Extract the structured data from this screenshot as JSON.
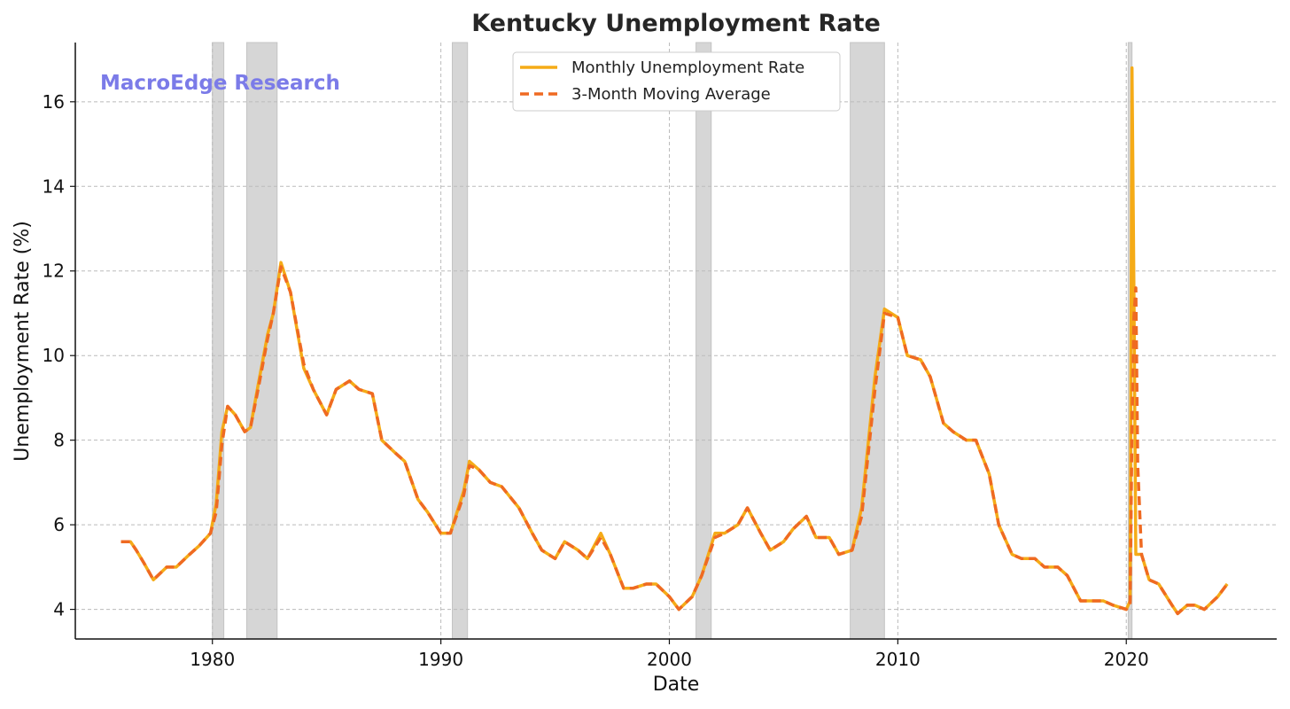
{
  "chart_data": {
    "type": "line",
    "title": "Kentucky Unemployment Rate",
    "xlabel": "Date",
    "ylabel": "Unemployment Rate (%)",
    "watermark": "MacroEdge Research",
    "xlim": [
      "1974-01",
      "2026-08"
    ],
    "ylim": [
      3.3,
      17.4
    ],
    "x_ticks": [
      "1980",
      "1990",
      "2000",
      "2010",
      "2020"
    ],
    "y_ticks": [
      4,
      6,
      8,
      10,
      12,
      14,
      16
    ],
    "grid": true,
    "legend_position": "top-center",
    "colors": {
      "monthly": "#f5ab17",
      "moving_average": "#ef6a22",
      "recession": "#d6d6d6",
      "watermark": "#7b7be8",
      "grid": "#bbbbbb"
    },
    "recessions": [
      {
        "start": "1980-01",
        "end": "1980-07"
      },
      {
        "start": "1981-07",
        "end": "1982-11"
      },
      {
        "start": "1990-07",
        "end": "1991-03"
      },
      {
        "start": "2001-03",
        "end": "2001-11"
      },
      {
        "start": "2007-12",
        "end": "2009-06"
      },
      {
        "start": "2020-02",
        "end": "2020-04"
      }
    ],
    "series": [
      {
        "name": "Monthly Unemployment Rate",
        "style": "solid",
        "points": [
          [
            "1976-01",
            5.6
          ],
          [
            "1976-06",
            5.6
          ],
          [
            "1976-09",
            5.4
          ],
          [
            "1977-01",
            5.1
          ],
          [
            "1977-06",
            4.7
          ],
          [
            "1978-01",
            5.0
          ],
          [
            "1978-06",
            5.0
          ],
          [
            "1979-01",
            5.3
          ],
          [
            "1979-06",
            5.5
          ],
          [
            "1979-12",
            5.8
          ],
          [
            "1980-03",
            6.5
          ],
          [
            "1980-06",
            8.2
          ],
          [
            "1980-09",
            8.8
          ],
          [
            "1981-01",
            8.6
          ],
          [
            "1981-06",
            8.2
          ],
          [
            "1981-09",
            8.3
          ],
          [
            "1982-01",
            9.3
          ],
          [
            "1982-06",
            10.5
          ],
          [
            "1982-09",
            11.0
          ],
          [
            "1983-01",
            12.2
          ],
          [
            "1983-06",
            11.5
          ],
          [
            "1984-01",
            9.7
          ],
          [
            "1984-06",
            9.2
          ],
          [
            "1985-01",
            8.6
          ],
          [
            "1985-06",
            9.2
          ],
          [
            "1986-01",
            9.4
          ],
          [
            "1986-06",
            9.2
          ],
          [
            "1987-01",
            9.1
          ],
          [
            "1987-06",
            8.0
          ],
          [
            "1988-01",
            7.7
          ],
          [
            "1988-06",
            7.5
          ],
          [
            "1989-01",
            6.6
          ],
          [
            "1989-06",
            6.3
          ],
          [
            "1990-01",
            5.8
          ],
          [
            "1990-06",
            5.8
          ],
          [
            "1991-01",
            6.8
          ],
          [
            "1991-04",
            7.5
          ],
          [
            "1991-09",
            7.3
          ],
          [
            "1992-03",
            7.0
          ],
          [
            "1992-09",
            6.9
          ],
          [
            "1993-06",
            6.4
          ],
          [
            "1994-01",
            5.8
          ],
          [
            "1994-06",
            5.4
          ],
          [
            "1995-01",
            5.2
          ],
          [
            "1995-06",
            5.6
          ],
          [
            "1996-01",
            5.4
          ],
          [
            "1996-06",
            5.2
          ],
          [
            "1997-01",
            5.8
          ],
          [
            "1997-06",
            5.3
          ],
          [
            "1998-01",
            4.5
          ],
          [
            "1998-06",
            4.5
          ],
          [
            "1999-01",
            4.6
          ],
          [
            "1999-06",
            4.6
          ],
          [
            "2000-01",
            4.3
          ],
          [
            "2000-06",
            4.0
          ],
          [
            "2001-01",
            4.3
          ],
          [
            "2001-06",
            4.8
          ],
          [
            "2002-01",
            5.8
          ],
          [
            "2002-06",
            5.8
          ],
          [
            "2003-01",
            6.0
          ],
          [
            "2003-06",
            6.4
          ],
          [
            "2004-01",
            5.8
          ],
          [
            "2004-06",
            5.4
          ],
          [
            "2005-01",
            5.6
          ],
          [
            "2005-06",
            5.9
          ],
          [
            "2006-01",
            6.2
          ],
          [
            "2006-06",
            5.7
          ],
          [
            "2007-01",
            5.7
          ],
          [
            "2007-06",
            5.3
          ],
          [
            "2008-01",
            5.4
          ],
          [
            "2008-06",
            6.4
          ],
          [
            "2009-01",
            9.5
          ],
          [
            "2009-06",
            11.1
          ],
          [
            "2010-01",
            10.9
          ],
          [
            "2010-06",
            10.0
          ],
          [
            "2011-01",
            9.9
          ],
          [
            "2011-06",
            9.5
          ],
          [
            "2012-01",
            8.4
          ],
          [
            "2012-06",
            8.2
          ],
          [
            "2013-01",
            8.0
          ],
          [
            "2013-06",
            8.0
          ],
          [
            "2014-01",
            7.2
          ],
          [
            "2014-06",
            6.0
          ],
          [
            "2015-01",
            5.3
          ],
          [
            "2015-06",
            5.2
          ],
          [
            "2016-01",
            5.2
          ],
          [
            "2016-06",
            5.0
          ],
          [
            "2017-01",
            5.0
          ],
          [
            "2017-06",
            4.8
          ],
          [
            "2018-01",
            4.2
          ],
          [
            "2018-06",
            4.2
          ],
          [
            "2019-01",
            4.2
          ],
          [
            "2019-06",
            4.1
          ],
          [
            "2020-01",
            4.0
          ],
          [
            "2020-03",
            4.2
          ],
          [
            "2020-04",
            16.8
          ],
          [
            "2020-05",
            11.6
          ],
          [
            "2020-06",
            5.3
          ],
          [
            "2020-09",
            5.3
          ],
          [
            "2021-01",
            4.7
          ],
          [
            "2021-06",
            4.6
          ],
          [
            "2022-01",
            4.1
          ],
          [
            "2022-04",
            3.9
          ],
          [
            "2022-09",
            4.1
          ],
          [
            "2023-01",
            4.1
          ],
          [
            "2023-06",
            4.0
          ],
          [
            "2024-01",
            4.3
          ],
          [
            "2024-06",
            4.6
          ]
        ]
      },
      {
        "name": "3-Month Moving Average",
        "style": "dashed",
        "points": [
          [
            "1976-01",
            5.6
          ],
          [
            "1976-06",
            5.6
          ],
          [
            "1976-09",
            5.4
          ],
          [
            "1977-01",
            5.1
          ],
          [
            "1977-06",
            4.7
          ],
          [
            "1978-01",
            5.0
          ],
          [
            "1978-06",
            5.0
          ],
          [
            "1979-01",
            5.3
          ],
          [
            "1979-06",
            5.5
          ],
          [
            "1979-12",
            5.8
          ],
          [
            "1980-03",
            6.3
          ],
          [
            "1980-06",
            7.9
          ],
          [
            "1980-09",
            8.8
          ],
          [
            "1981-01",
            8.6
          ],
          [
            "1981-06",
            8.2
          ],
          [
            "1981-09",
            8.3
          ],
          [
            "1982-01",
            9.2
          ],
          [
            "1982-06",
            10.4
          ],
          [
            "1982-09",
            11.0
          ],
          [
            "1983-01",
            12.1
          ],
          [
            "1983-06",
            11.5
          ],
          [
            "1984-01",
            9.8
          ],
          [
            "1984-06",
            9.2
          ],
          [
            "1985-01",
            8.6
          ],
          [
            "1985-06",
            9.2
          ],
          [
            "1986-01",
            9.4
          ],
          [
            "1986-06",
            9.2
          ],
          [
            "1987-01",
            9.1
          ],
          [
            "1987-06",
            8.0
          ],
          [
            "1988-01",
            7.7
          ],
          [
            "1988-06",
            7.5
          ],
          [
            "1989-01",
            6.6
          ],
          [
            "1989-06",
            6.3
          ],
          [
            "1990-01",
            5.8
          ],
          [
            "1990-06",
            5.8
          ],
          [
            "1991-01",
            6.7
          ],
          [
            "1991-04",
            7.4
          ],
          [
            "1991-09",
            7.3
          ],
          [
            "1992-03",
            7.0
          ],
          [
            "1992-09",
            6.9
          ],
          [
            "1993-06",
            6.4
          ],
          [
            "1994-01",
            5.8
          ],
          [
            "1994-06",
            5.4
          ],
          [
            "1995-01",
            5.2
          ],
          [
            "1995-06",
            5.6
          ],
          [
            "1996-01",
            5.4
          ],
          [
            "1996-06",
            5.2
          ],
          [
            "1997-01",
            5.7
          ],
          [
            "1997-06",
            5.3
          ],
          [
            "1998-01",
            4.5
          ],
          [
            "1998-06",
            4.5
          ],
          [
            "1999-01",
            4.6
          ],
          [
            "1999-06",
            4.6
          ],
          [
            "2000-01",
            4.3
          ],
          [
            "2000-06",
            4.0
          ],
          [
            "2001-01",
            4.3
          ],
          [
            "2001-06",
            4.8
          ],
          [
            "2002-01",
            5.7
          ],
          [
            "2002-06",
            5.8
          ],
          [
            "2003-01",
            6.0
          ],
          [
            "2003-06",
            6.4
          ],
          [
            "2004-01",
            5.8
          ],
          [
            "2004-06",
            5.4
          ],
          [
            "2005-01",
            5.6
          ],
          [
            "2005-06",
            5.9
          ],
          [
            "2006-01",
            6.2
          ],
          [
            "2006-06",
            5.7
          ],
          [
            "2007-01",
            5.7
          ],
          [
            "2007-06",
            5.3
          ],
          [
            "2008-01",
            5.4
          ],
          [
            "2008-06",
            6.2
          ],
          [
            "2009-01",
            9.2
          ],
          [
            "2009-06",
            11.0
          ],
          [
            "2010-01",
            10.9
          ],
          [
            "2010-06",
            10.0
          ],
          [
            "2011-01",
            9.9
          ],
          [
            "2011-06",
            9.5
          ],
          [
            "2012-01",
            8.4
          ],
          [
            "2012-06",
            8.2
          ],
          [
            "2013-01",
            8.0
          ],
          [
            "2013-06",
            8.0
          ],
          [
            "2014-01",
            7.2
          ],
          [
            "2014-06",
            6.0
          ],
          [
            "2015-01",
            5.3
          ],
          [
            "2015-06",
            5.2
          ],
          [
            "2016-01",
            5.2
          ],
          [
            "2016-06",
            5.0
          ],
          [
            "2017-01",
            5.0
          ],
          [
            "2017-06",
            4.8
          ],
          [
            "2018-01",
            4.2
          ],
          [
            "2018-06",
            4.2
          ],
          [
            "2019-01",
            4.2
          ],
          [
            "2019-06",
            4.1
          ],
          [
            "2020-01",
            4.0
          ],
          [
            "2020-03",
            4.1
          ],
          [
            "2020-04",
            8.3
          ],
          [
            "2020-05",
            10.9
          ],
          [
            "2020-06",
            11.6
          ],
          [
            "2020-07",
            7.4
          ],
          [
            "2020-09",
            5.3
          ],
          [
            "2021-01",
            4.7
          ],
          [
            "2021-06",
            4.6
          ],
          [
            "2022-01",
            4.1
          ],
          [
            "2022-04",
            3.9
          ],
          [
            "2022-09",
            4.1
          ],
          [
            "2023-01",
            4.1
          ],
          [
            "2023-06",
            4.0
          ],
          [
            "2024-01",
            4.3
          ],
          [
            "2024-06",
            4.6
          ]
        ]
      }
    ]
  }
}
